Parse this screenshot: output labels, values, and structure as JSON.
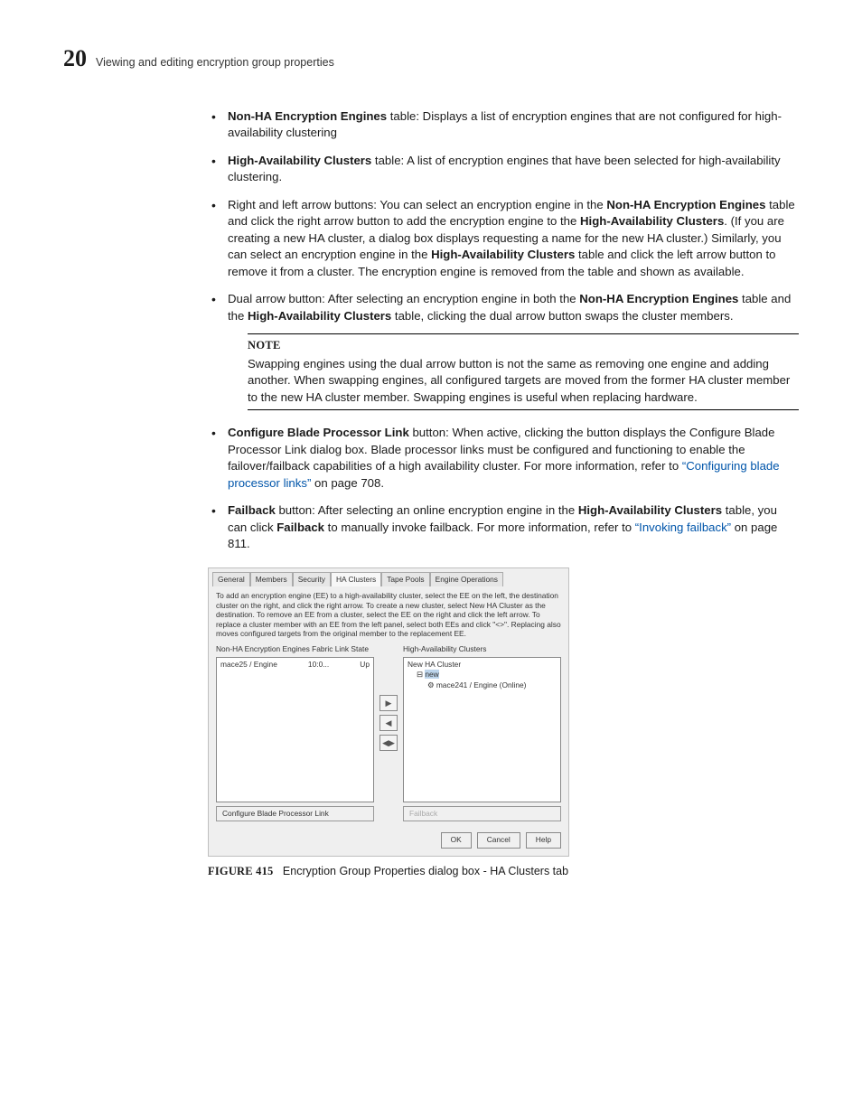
{
  "header": {
    "chapter": "20",
    "title": "Viewing and editing encryption group properties"
  },
  "bullets": {
    "b1": {
      "strong": "Non-HA Encryption Engines",
      "rest": " table: Displays a list of encryption engines that are not configured for high-availability clustering"
    },
    "b2": {
      "strong": "High-Availability Clusters",
      "rest": " table: A list of encryption engines that have been selected for high-availability clustering."
    },
    "b3": {
      "pre": "Right and left arrow buttons: You can select an encryption engine in the ",
      "s1": "Non-HA Encryption Engines",
      "mid1": " table and click the right arrow button to add the encryption engine to the ",
      "s2": "High-Availability Clusters",
      "mid2": ". (If you are creating a new HA cluster, a dialog box displays requesting a name for the new HA cluster.) Similarly, you can select an encryption engine in the ",
      "s3": "High-Availability Clusters",
      "post": " table and click the left arrow button to remove it from a cluster. The encryption engine is removed from the table and shown as available."
    },
    "b4": {
      "pre": "Dual arrow button: After selecting an encryption engine in both the ",
      "s1": "Non-HA Encryption Engines",
      "mid": " table and the ",
      "s2": "High-Availability Clusters",
      "post": " table, clicking the dual arrow button swaps the cluster members."
    },
    "b5": {
      "strong": "Configure Blade Processor Link",
      "mid": " button: When active, clicking the button displays the Configure Blade Processor Link dialog box. Blade processor links must be configured and functioning to enable the failover/failback capabilities of a high availability cluster. For more information, refer to ",
      "link": "“Configuring blade processor links”",
      "post": " on page 708."
    },
    "b6": {
      "strong": "Failback",
      "mid1": " button: After selecting an online encryption engine in the ",
      "s1": "High-Availability Clusters",
      "mid2": " table, you can click ",
      "s2": "Failback",
      "mid3": " to manually invoke failback. For more information, refer to ",
      "link": "“Invoking failback”",
      "post": " on page 811."
    }
  },
  "note": {
    "head": "NOTE",
    "body": "Swapping engines using the dual arrow button is not the same as removing one engine and adding another. When swapping engines, all configured targets are moved from the former HA cluster member to the new HA cluster member. Swapping engines is useful when replacing hardware."
  },
  "dialog": {
    "tabs": {
      "t0": "General",
      "t1": "Members",
      "t2": "Security",
      "t3": "HA Clusters",
      "t4": "Tape Pools",
      "t5": "Engine Operations"
    },
    "instructions": "To add an encryption engine (EE) to a high-availability cluster, select the EE on the left, the destination cluster on the right, and click the right arrow. To create a new cluster, select New HA Cluster as the destination. To remove an EE from a cluster, select the EE on the right and click the left arrow. To replace a cluster member with an EE from the left panel, select both EEs and click \"<>\". Replacing also moves configured targets from the original member to the replacement EE.",
    "left": {
      "title": "Non-HA Encryption Engines  Fabric  Link  State",
      "row_name": "mace25 / Engine",
      "row_fabric": "10:0...",
      "row_state": "Up"
    },
    "right": {
      "title": "High-Availability Clusters",
      "root": "New HA Cluster",
      "node": "new",
      "leaf": "⚙ mace241 / Engine (Online)"
    },
    "arrows": {
      "r": "▶",
      "l": "◀",
      "b": "◀▶"
    },
    "buttons": {
      "config": "Configure Blade Processor Link",
      "failback": "Failback",
      "ok": "OK",
      "cancel": "Cancel",
      "help": "Help"
    }
  },
  "figure": {
    "label": "FIGURE 415",
    "caption": "Encryption Group Properties dialog box - HA Clusters tab"
  }
}
